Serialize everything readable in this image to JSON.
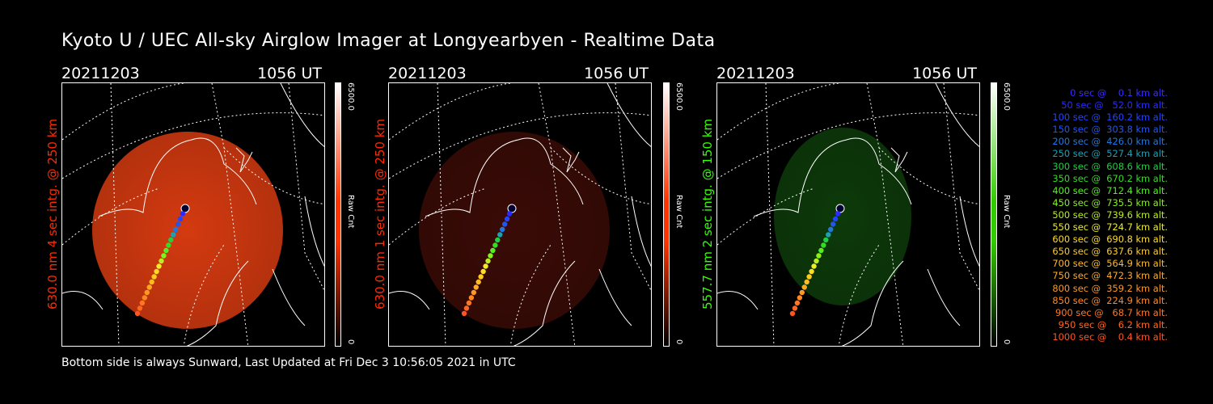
{
  "title": "Kyoto U / UEC All-sky Airglow Imager at Longyearbyen - Realtime Data",
  "panels": [
    {
      "date": "20211203",
      "time": "1056 UT",
      "ylabel": "630.0 nm 4 sec intg. @ 250 km",
      "label_color": "#ff2a00",
      "cbar_max": "6500.0",
      "cbar_label": "Raw Cnt",
      "cbar_min": "0",
      "cbar_color": "#ff3300",
      "fill_color": "#d43a10"
    },
    {
      "date": "20211203",
      "time": "1056 UT",
      "ylabel": "630.0 nm 1 sec intg. @ 250 km",
      "label_color": "#ff2a00",
      "cbar_max": "6500.0",
      "cbar_label": "Raw Cnt",
      "cbar_min": "0",
      "cbar_color": "#ff3300",
      "fill_color": "#3a0b06"
    },
    {
      "date": "20211203",
      "time": "1056 UT",
      "ylabel": "557.7 nm 2 sec intg. @ 150 km",
      "label_color": "#33ff00",
      "cbar_max": "6500.0",
      "cbar_label": "Raw Cnt",
      "cbar_min": "0",
      "cbar_color": "#33cc00",
      "fill_color": "#0d3a0a"
    }
  ],
  "footer": "Bottom side is always Sunward, Last Updated at Fri Dec  3 10:56:05 2021 in UTC",
  "legend": [
    {
      "text": "   0 sec @    0.1 km alt.",
      "color": "#3a2bff"
    },
    {
      "text": "  50 sec @   52.0 km alt.",
      "color": "#2b2bff"
    },
    {
      "text": " 100 sec @  160.2 km alt.",
      "color": "#2244ff"
    },
    {
      "text": " 150 sec @  303.8 km alt.",
      "color": "#2255ee"
    },
    {
      "text": " 200 sec @  426.0 km alt.",
      "color": "#2277dd"
    },
    {
      "text": " 250 sec @  527.4 km alt.",
      "color": "#1ea0b0"
    },
    {
      "text": " 300 sec @  608.6 km alt.",
      "color": "#22cc44"
    },
    {
      "text": " 350 sec @  670.2 km alt.",
      "color": "#33dd22"
    },
    {
      "text": " 400 sec @  712.4 km alt.",
      "color": "#55ee22"
    },
    {
      "text": " 450 sec @  735.5 km alt.",
      "color": "#88ee22"
    },
    {
      "text": " 500 sec @  739.6 km alt.",
      "color": "#bbee22"
    },
    {
      "text": " 550 sec @  724.7 km alt.",
      "color": "#eeee22"
    },
    {
      "text": " 600 sec @  690.8 km alt.",
      "color": "#ffdd22"
    },
    {
      "text": " 650 sec @  637.6 km alt.",
      "color": "#ffcc22"
    },
    {
      "text": " 700 sec @  564.9 km alt.",
      "color": "#ffbb22"
    },
    {
      "text": " 750 sec @  472.3 km alt.",
      "color": "#ffaa22"
    },
    {
      "text": " 800 sec @  359.2 km alt.",
      "color": "#ff9922"
    },
    {
      "text": " 850 sec @  224.9 km alt.",
      "color": "#ff8822"
    },
    {
      "text": " 900 sec @   68.7 km alt.",
      "color": "#ff7722"
    },
    {
      "text": " 950 sec @    6.2 km alt.",
      "color": "#ff6622"
    },
    {
      "text": "1000 sec @    0.4 km alt.",
      "color": "#ff5522"
    }
  ]
}
